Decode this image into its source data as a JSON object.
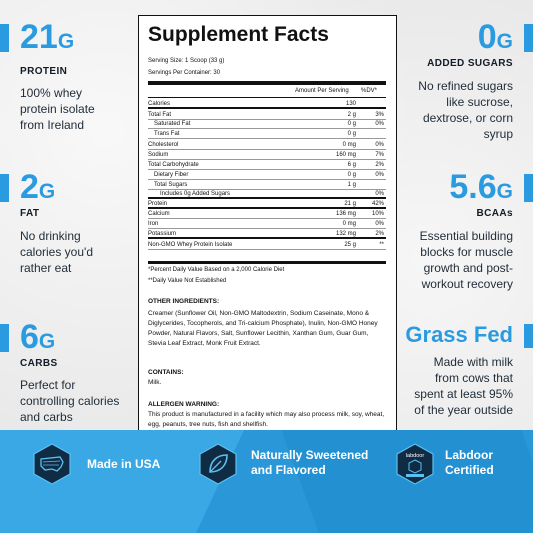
{
  "left_stats": [
    {
      "number": "21",
      "unit": "G",
      "label": "PROTEIN",
      "desc": [
        "100% whey",
        "protein isolate",
        "from Ireland"
      ]
    },
    {
      "number": "2",
      "unit": "G",
      "label": "FAT",
      "desc": [
        "No drinking",
        "calories you'd",
        "rather eat"
      ]
    },
    {
      "number": "6",
      "unit": "G",
      "label": "CARBS",
      "desc": [
        "Perfect for",
        "controlling calories",
        "and carbs"
      ]
    }
  ],
  "right_stats": [
    {
      "number": "0",
      "unit": "G",
      "label": "ADDED SUGARS",
      "desc": [
        "No refined sugars",
        "like sucrose,",
        "dextrose, or corn",
        "syrup"
      ]
    },
    {
      "number": "5.6",
      "unit": "G",
      "label": "BCAAs",
      "desc": [
        "Essential building",
        "blocks for muscle",
        "growth and post-",
        "workout recovery"
      ]
    },
    {
      "number": "Grass Fed",
      "unit": "",
      "label": "",
      "desc": [
        "Made with milk",
        "from cows that",
        "spent at least 95%",
        "of the year outside"
      ]
    }
  ],
  "facts": {
    "title": "Supplement Facts",
    "serving_size": "Serving Size: 1 Scoop (33 g)",
    "servings_per_container": "Servings Per Container: 30",
    "header_amount": "Amount Per Serving",
    "header_dv": "%DV*",
    "rows": [
      {
        "name": "Calories",
        "amount": "130",
        "dv": ""
      },
      {
        "name": "Total Fat",
        "amount": "2 g",
        "dv": "3%"
      },
      {
        "name": "  Saturated Fat",
        "amount": "0 g",
        "dv": "0%"
      },
      {
        "name": "  Trans Fat",
        "amount": "0 g",
        "dv": ""
      },
      {
        "name": "Cholesterol",
        "amount": "0 mg",
        "dv": "0%"
      },
      {
        "name": "Sodium",
        "amount": "160 mg",
        "dv": "7%"
      },
      {
        "name": "Total Carbohydrate",
        "amount": "6 g",
        "dv": "2%"
      },
      {
        "name": "  Dietary Fiber",
        "amount": "0 g",
        "dv": "0%"
      },
      {
        "name": "  Total Sugars",
        "amount": "1 g",
        "dv": ""
      },
      {
        "name": "    Includes 0g Added Sugars",
        "amount": "",
        "dv": "0%"
      },
      {
        "name": "Protein",
        "amount": "21 g",
        "dv": "42%"
      },
      {
        "name": "Calcium",
        "amount": "136 mg",
        "dv": "10%"
      },
      {
        "name": "Iron",
        "amount": "0 mg",
        "dv": "0%"
      },
      {
        "name": "Potassium",
        "amount": "132 mg",
        "dv": "2%"
      },
      {
        "name": "Non-GMO Whey Protein Isolate",
        "amount": "25 g",
        "dv": "**"
      }
    ],
    "footnote1": "*Percent Daily Value Based on a 2,000 Calorie Diet",
    "footnote2": "**Daily Value Not Established"
  },
  "ingredients": {
    "other_heading": "OTHER INGREDIENTS:",
    "other_text": "Creamer (Sunflower Oil, Non-GMO Maltodextrin, Sodium Caseinate, Mono & Diglycerides, Tocopherols, and Tri-calcium Phosphate), Inulin, Non-GMO Honey Powder, Natural Flavors, Salt, Sunflower Lecithin, Xanthan Gum, Guar Gum, Stevia Leaf Extract, Monk Fruit Extract.",
    "contains_heading": "CONTAINS:",
    "contains_text": "Milk.",
    "allergen_heading": "ALLERGEN WARNING:",
    "allergen_text": "This product is manufactured in a facility which may also process milk, soy, wheat, egg, peanuts, tree nuts, fish and shellfish."
  },
  "badges": [
    {
      "label": [
        "Made in USA"
      ],
      "icon": "usa-map-icon"
    },
    {
      "label": [
        "Naturally Sweetened",
        "and Flavored"
      ],
      "icon": "leaf-icon"
    },
    {
      "label": [
        "Labdoor",
        "Certified"
      ],
      "icon": "labdoor-icon",
      "icon_text": "labdoor"
    }
  ],
  "colors": {
    "accent": "#2a9be0",
    "band": "#2a98d8",
    "text": "#1b2a3a"
  }
}
